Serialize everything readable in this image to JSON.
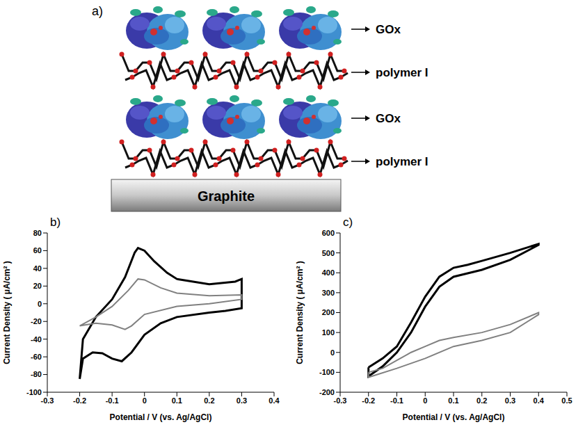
{
  "diagram": {
    "panel": "a)",
    "layers": [
      "GOx",
      "polymer I",
      "GOx",
      "polymer I"
    ],
    "substrate": "Graphite"
  },
  "chart_data": [
    {
      "type": "line",
      "title": "b)",
      "x_label": "Potential / V (vs. Ag/AgCl)",
      "y_label": "Current Density ( μA/cm² )",
      "xlim": [
        -0.3,
        0.4
      ],
      "xticks": [
        -0.3,
        -0.2,
        -0.1,
        0,
        0.1,
        0.2,
        0.3,
        0.4
      ],
      "ylim": [
        -100,
        80
      ],
      "yticks": [
        -100,
        -80,
        -60,
        -40,
        -20,
        0,
        20,
        40,
        60,
        80
      ],
      "series": [
        {
          "color": "#000000",
          "x": [
            -0.2,
            -0.19,
            -0.15,
            -0.1,
            -0.06,
            -0.03,
            -0.02,
            0,
            0.03,
            0.07,
            0.1,
            0.2,
            0.28,
            0.3,
            0.3,
            0.25,
            0.2,
            0.1,
            0.05,
            0,
            -0.04,
            -0.07,
            -0.1,
            -0.13,
            -0.16,
            -0.19,
            -0.2
          ],
          "values": [
            -85,
            -40,
            -15,
            5,
            30,
            58,
            63,
            60,
            48,
            35,
            28,
            22,
            25,
            28,
            -5,
            -8,
            -10,
            -15,
            -22,
            -35,
            -55,
            -65,
            -62,
            -56,
            -55,
            -62,
            -85
          ]
        },
        {
          "color": "#808080",
          "x": [
            -0.2,
            -0.15,
            -0.1,
            -0.05,
            -0.02,
            0,
            0.05,
            0.1,
            0.2,
            0.3,
            0.3,
            0.2,
            0.1,
            0,
            -0.04,
            -0.06,
            -0.1,
            -0.15,
            -0.2
          ],
          "values": [
            -25,
            -15,
            -3,
            15,
            28,
            27,
            18,
            12,
            9,
            10,
            5,
            0,
            -3,
            -12,
            -25,
            -29,
            -24,
            -22,
            -25
          ]
        }
      ]
    },
    {
      "type": "line",
      "title": "c)",
      "x_label": "Potential / V (vs. Ag/AgCl)",
      "y_label": "Current Density ( μA/cm² )",
      "xlim": [
        -0.3,
        0.5
      ],
      "xticks": [
        -0.3,
        -0.2,
        -0.1,
        0,
        0.1,
        0.2,
        0.3,
        0.4,
        0.5
      ],
      "ylim": [
        -200,
        600
      ],
      "yticks": [
        -200,
        -100,
        0,
        100,
        200,
        300,
        400,
        500,
        600
      ],
      "series": [
        {
          "color": "#000000",
          "x": [
            -0.2,
            -0.15,
            -0.1,
            -0.05,
            0,
            0.05,
            0.1,
            0.15,
            0.2,
            0.3,
            0.4,
            0.4,
            0.3,
            0.2,
            0.1,
            0.05,
            0,
            -0.05,
            -0.1,
            -0.15,
            -0.2,
            -0.2
          ],
          "values": [
            -75,
            -30,
            30,
            150,
            280,
            380,
            425,
            440,
            460,
            500,
            545,
            540,
            465,
            415,
            380,
            330,
            230,
            100,
            0,
            -70,
            -120,
            -75
          ]
        },
        {
          "color": "#808080",
          "x": [
            -0.2,
            -0.15,
            -0.1,
            -0.05,
            0,
            0.05,
            0.1,
            0.2,
            0.3,
            0.4,
            0.4,
            0.3,
            0.2,
            0.1,
            0,
            -0.1,
            -0.2,
            -0.2
          ],
          "values": [
            -100,
            -80,
            -40,
            0,
            30,
            60,
            75,
            100,
            140,
            200,
            190,
            100,
            60,
            30,
            -30,
            -80,
            -125,
            -100
          ]
        }
      ]
    }
  ]
}
